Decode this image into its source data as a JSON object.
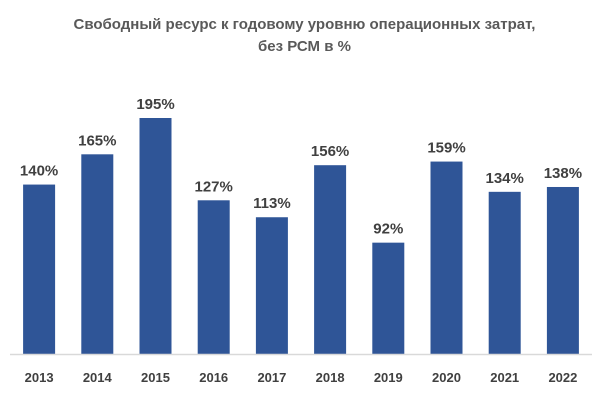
{
  "chart_data": {
    "type": "bar",
    "title_lines": [
      "Свободный ресурс к годовому уровню операционных затрат,",
      "без РСМ в %"
    ],
    "categories": [
      "2013",
      "2014",
      "2015",
      "2016",
      "2017",
      "2018",
      "2019",
      "2020",
      "2021",
      "2022"
    ],
    "values": [
      140,
      165,
      195,
      127,
      113,
      156,
      92,
      159,
      134,
      138
    ],
    "value_labels": [
      "140%",
      "165%",
      "195%",
      "127%",
      "113%",
      "156%",
      "92%",
      "159%",
      "134%",
      "138%"
    ],
    "ylim": [
      0,
      195
    ],
    "grid": false,
    "legend": "none",
    "bar_color": "#2F5597",
    "axis_color": "#D9D9D9"
  }
}
